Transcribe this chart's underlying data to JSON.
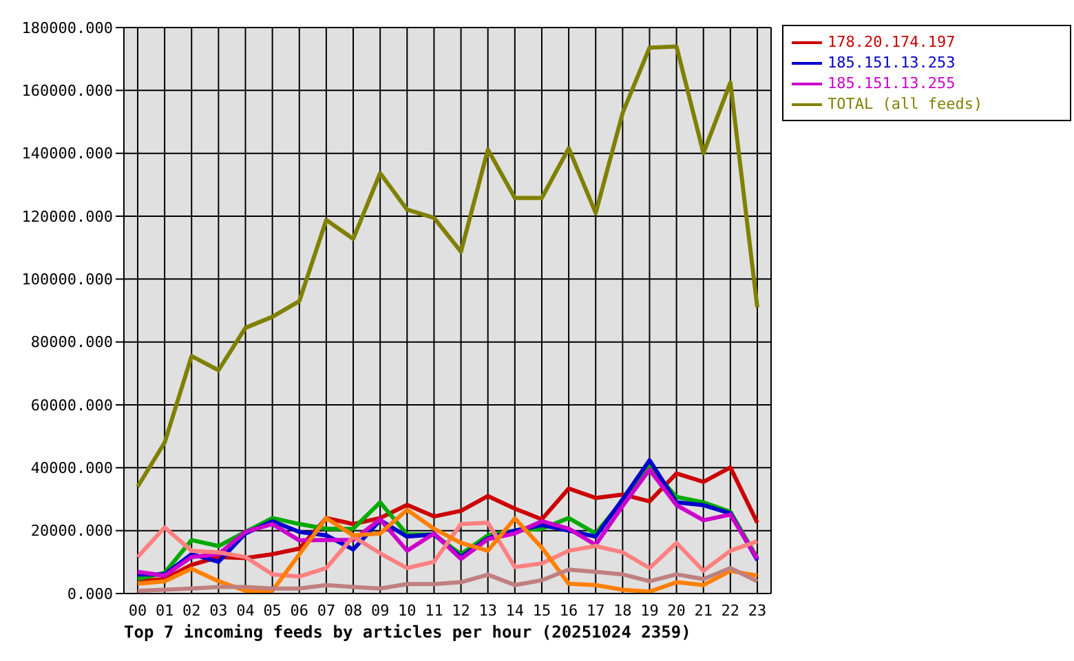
{
  "chart_data": {
    "type": "line",
    "title": "Top 7 incoming feeds by articles per hour (20251024 2359)",
    "categories": [
      "00",
      "01",
      "02",
      "03",
      "04",
      "05",
      "06",
      "07",
      "08",
      "09",
      "10",
      "11",
      "12",
      "13",
      "14",
      "15",
      "16",
      "17",
      "18",
      "19",
      "20",
      "21",
      "22",
      "23"
    ],
    "ylim": [
      0,
      180000
    ],
    "yticks": [
      {
        "value": 0,
        "label": "0.000"
      },
      {
        "value": 20000,
        "label": "20000.000"
      },
      {
        "value": 40000,
        "label": "40000.000"
      },
      {
        "value": 60000,
        "label": "60000.000"
      },
      {
        "value": 80000,
        "label": "80000.000"
      },
      {
        "value": 100000,
        "label": "100000.000"
      },
      {
        "value": 120000,
        "label": "120000.000"
      },
      {
        "value": 140000,
        "label": "140000.000"
      },
      {
        "value": 160000,
        "label": "160000.000"
      },
      {
        "value": 180000,
        "label": "180000.000"
      }
    ],
    "grid": true,
    "legend": "top right",
    "series": [
      {
        "name": "178.20.174.197",
        "color": "#cc0000",
        "values": [
          3900,
          4600,
          9100,
          11600,
          11300,
          12500,
          14300,
          24000,
          22100,
          24000,
          28200,
          24500,
          26300,
          31000,
          27000,
          23600,
          33400,
          30400,
          31500,
          29300,
          38200,
          35500,
          40100,
          22500
        ]
      },
      {
        "color": "#00aa00",
        "values": [
          4600,
          6600,
          17000,
          15100,
          19600,
          24000,
          22100,
          20600,
          20600,
          29000,
          18800,
          18800,
          12500,
          18500,
          20000,
          20600,
          24000,
          19100,
          29600,
          40400,
          30700,
          29000,
          26000,
          11300
        ]
      },
      {
        "name": "185.151.13.253",
        "color": "#0000cc",
        "values": [
          6100,
          6100,
          12500,
          10100,
          19100,
          23000,
          19600,
          18500,
          14000,
          23300,
          18100,
          18800,
          11600,
          17600,
          20000,
          21800,
          20000,
          18100,
          30000,
          42400,
          29000,
          28100,
          25500,
          10600
        ]
      },
      {
        "name": "185.151.13.255",
        "color": "#cc00cc",
        "values": [
          6900,
          5700,
          11600,
          12500,
          19600,
          22100,
          16900,
          17000,
          17000,
          23600,
          13600,
          19100,
          11000,
          17300,
          19100,
          23000,
          20600,
          15500,
          27800,
          39400,
          28100,
          23300,
          25100,
          11000
        ]
      },
      {
        "color": "#ff8080",
        "values": [
          11600,
          21000,
          13600,
          13100,
          11600,
          6100,
          5400,
          8100,
          18100,
          12800,
          8100,
          10100,
          22100,
          22500,
          8400,
          9600,
          13600,
          15100,
          13100,
          8100,
          16100,
          7200,
          13600,
          16600
        ]
      },
      {
        "color": "#ff8000",
        "values": [
          3100,
          3900,
          7900,
          3900,
          900,
          900,
          12500,
          24000,
          18500,
          19100,
          26600,
          20600,
          16100,
          13600,
          23900,
          14600,
          3100,
          2700,
          1200,
          600,
          3600,
          2700,
          7200,
          5700
        ]
      },
      {
        "color": "#c08080",
        "values": [
          900,
          1200,
          1600,
          2100,
          2100,
          1600,
          1600,
          2700,
          2100,
          1600,
          3000,
          3000,
          3600,
          6000,
          2700,
          4200,
          7600,
          6900,
          6100,
          3900,
          6100,
          4600,
          8100,
          3900
        ]
      },
      {
        "name": "TOTAL (all feeds)",
        "color": "#808000",
        "values": [
          34000,
          48000,
          75500,
          71000,
          84500,
          88000,
          93000,
          118800,
          112800,
          133700,
          122100,
          119500,
          108700,
          141200,
          125800,
          125800,
          141600,
          121000,
          152800,
          173600,
          174000,
          140000,
          162500,
          91000
        ]
      }
    ]
  }
}
